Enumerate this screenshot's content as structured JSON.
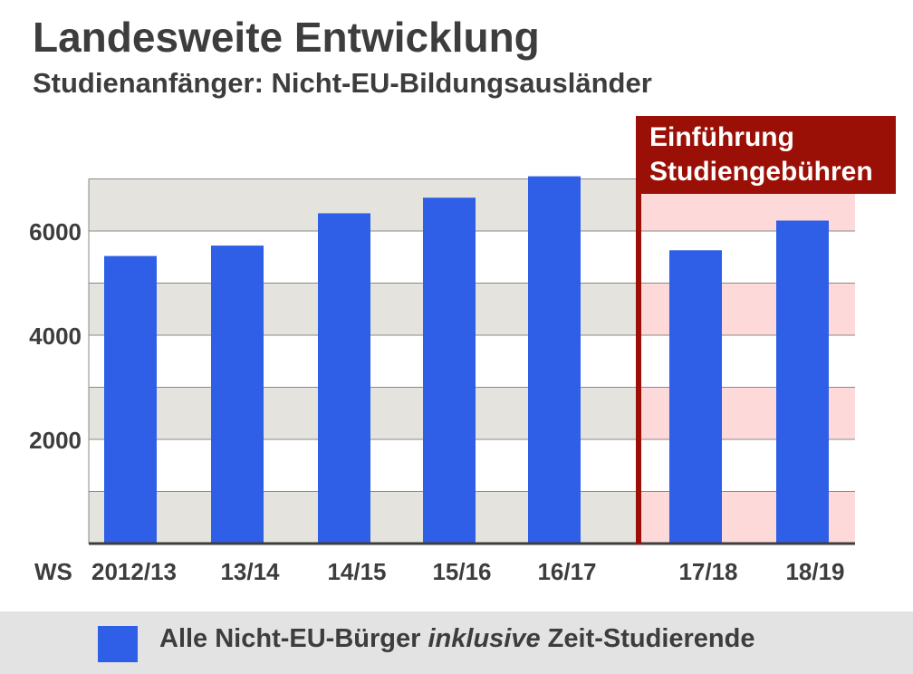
{
  "chart_data": {
    "type": "bar",
    "title": "Landesweite Entwicklung",
    "subtitle": "Studienanfänger: Nicht-EU-Bildungsausländer",
    "x_prefix": "WS",
    "categories": [
      "2012/13",
      "13/14",
      "14/15",
      "15/16",
      "16/17",
      "17/18",
      "18/19"
    ],
    "values": [
      5520,
      5720,
      6340,
      6640,
      7050,
      5630,
      6200
    ],
    "yticks": [
      2000,
      4000,
      6000
    ],
    "ylim": [
      0,
      7000
    ],
    "grid": true,
    "annotation": {
      "line1": "Einführung",
      "line2": "Studiengebühren",
      "starts_at": "17/18"
    },
    "legend": {
      "placement": "bottom",
      "prefix": "Alle Nicht-EU-Bürger",
      "emphasis": "inklusive",
      "suffix": "Zeit-Studierende"
    },
    "colors": {
      "bar": "#2e5fe6",
      "annotation": "#9b1006",
      "band_before": "#e5e3dd",
      "band_after": "#fdd9d9",
      "text": "#3d3d3d"
    }
  }
}
